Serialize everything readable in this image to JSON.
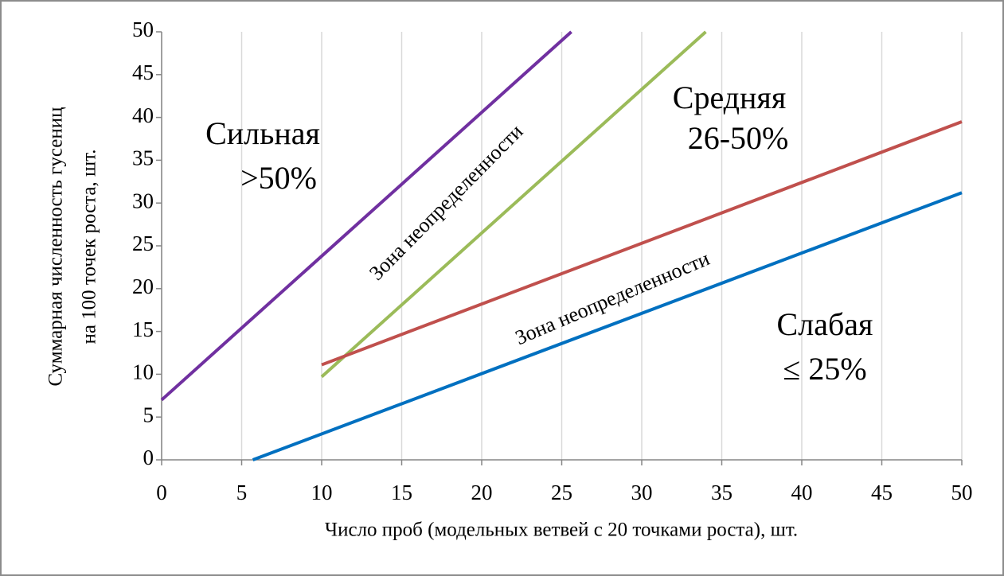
{
  "chart_data": {
    "type": "line",
    "x_label": "Число проб  (модельных  ветвей с 20 точками роста), шт.",
    "y_label": [
      "Суммарная  численность гусениц",
      "на 100 точек роста, шт."
    ],
    "xlim": [
      0,
      50
    ],
    "ylim": [
      0,
      50
    ],
    "xticks": [
      0,
      5,
      10,
      15,
      20,
      25,
      30,
      35,
      40,
      45,
      50
    ],
    "yticks": [
      0,
      5,
      10,
      15,
      20,
      25,
      30,
      35,
      40,
      45,
      50
    ],
    "grid": "x",
    "series": [
      {
        "color": "#7030a0",
        "x": [
          0,
          25.6
        ],
        "values": [
          7,
          50
        ]
      },
      {
        "color": "#9bbb59",
        "x": [
          10,
          34
        ],
        "values": [
          9.7,
          50
        ]
      },
      {
        "color": "#c0504d",
        "x": [
          10,
          50
        ],
        "values": [
          11.1,
          39.5
        ]
      },
      {
        "color": "#0070c0",
        "x": [
          5.7,
          50
        ],
        "values": [
          0,
          31.2
        ]
      }
    ],
    "annotations": [
      "Сильная",
      ">50%",
      "Средняя",
      "26-50%",
      "Слабая",
      "≤ 25%",
      "Зона неопределенности",
      "Зона неопределенности"
    ]
  }
}
